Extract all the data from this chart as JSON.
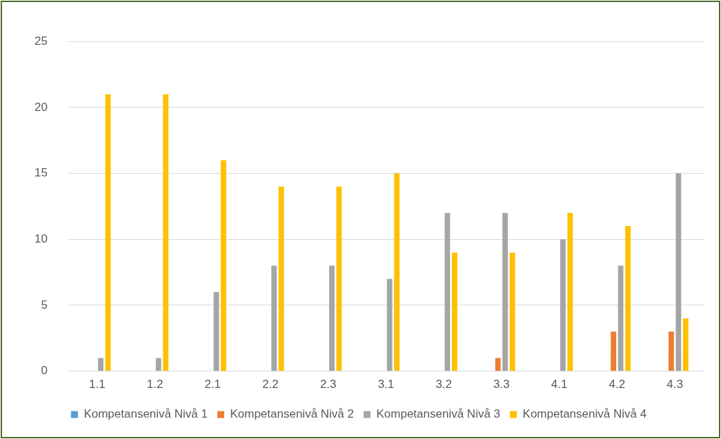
{
  "chart_data": {
    "type": "bar",
    "categories": [
      "1.1",
      "1.2",
      "2.1",
      "2.2",
      "2.3",
      "3.1",
      "3.2",
      "3.3",
      "4.1",
      "4.2",
      "4.3"
    ],
    "series": [
      {
        "name": "Kompetansenivå Nivå 1",
        "color": "#5b9bd5",
        "values": [
          0,
          0,
          0,
          0,
          0,
          0,
          0,
          0,
          0,
          0,
          0
        ]
      },
      {
        "name": "Kompetansenivå Nivå 2",
        "color": "#ed7d31",
        "values": [
          0,
          0,
          0,
          0,
          0,
          0,
          0,
          1,
          0,
          3,
          3
        ]
      },
      {
        "name": "Kompetansenivå Nivå 3",
        "color": "#a5a5a5",
        "values": [
          1,
          1,
          6,
          8,
          8,
          7,
          12,
          12,
          10,
          8,
          15
        ]
      },
      {
        "name": "Kompetansenivå Nivå 4",
        "color": "#ffc000",
        "values": [
          21,
          21,
          16,
          14,
          14,
          15,
          9,
          9,
          12,
          11,
          4
        ]
      }
    ],
    "ylim": [
      0,
      25
    ],
    "yticks": [
      0,
      5,
      10,
      15,
      20,
      25
    ],
    "grid": "y",
    "legend": "bottom"
  }
}
